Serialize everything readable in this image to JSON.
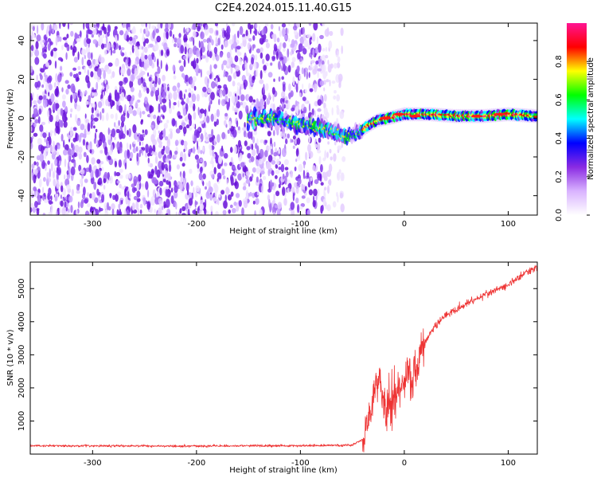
{
  "figure_title": "C2E4.2024.015.11.40.G15",
  "chart_data": [
    {
      "type": "heatmap",
      "title": "",
      "xlabel": "Height of straight line (km)",
      "ylabel": "Frequency (Hz)",
      "xlim": [
        -360,
        128
      ],
      "ylim": [
        -50,
        49
      ],
      "xticks": [
        -300,
        -200,
        -100,
        0,
        100
      ],
      "yticks": [
        -40,
        -20,
        0,
        20,
        40
      ],
      "noise_region_x": [
        -360,
        -58
      ],
      "signal_trace": {
        "x": [
          -150,
          -130,
          -110,
          -90,
          -75,
          -65,
          -55,
          -45,
          -35,
          -25,
          -15,
          0,
          25,
          50,
          75,
          100,
          128
        ],
        "y": [
          0,
          0,
          -2,
          -4,
          -6,
          -8,
          -9,
          -8,
          -4,
          -1,
          0,
          2,
          2,
          1,
          1,
          2,
          1
        ]
      },
      "colorbar": {
        "label": "Normalized spectral amplitude",
        "range": [
          0.0,
          1.0
        ],
        "ticks": [
          0.0,
          0.2,
          0.4,
          0.6,
          0.8
        ],
        "stops": [
          "#ffffff",
          "#d9b3ff",
          "#8a2be2",
          "#0000ff",
          "#00ffff",
          "#00ff00",
          "#ffff00",
          "#ff0000",
          "#ff1493"
        ]
      },
      "grid": false
    },
    {
      "type": "line",
      "title": "",
      "xlabel": "Height of straight line (km)",
      "ylabel": "SNR (10 * v/v)",
      "xlim": [
        -360,
        128
      ],
      "ylim": [
        0,
        5800
      ],
      "xticks": [
        -300,
        -200,
        -100,
        0,
        100
      ],
      "yticks": [
        1000,
        2000,
        3000,
        4000,
        5000
      ],
      "color": "#ee3333",
      "series": [
        {
          "name": "",
          "x": [
            -360,
            -300,
            -200,
            -100,
            -50,
            -40,
            -35,
            -30,
            -25,
            -20,
            -15,
            -10,
            -5,
            0,
            5,
            10,
            15,
            20,
            30,
            40,
            60,
            80,
            100,
            115,
            128
          ],
          "y": [
            250,
            250,
            245,
            255,
            270,
            450,
            900,
            1800,
            2200,
            1500,
            1200,
            1600,
            1900,
            2100,
            2300,
            2600,
            3000,
            3400,
            3900,
            4200,
            4550,
            4850,
            5100,
            5450,
            5650
          ]
        }
      ],
      "grid": false
    }
  ]
}
